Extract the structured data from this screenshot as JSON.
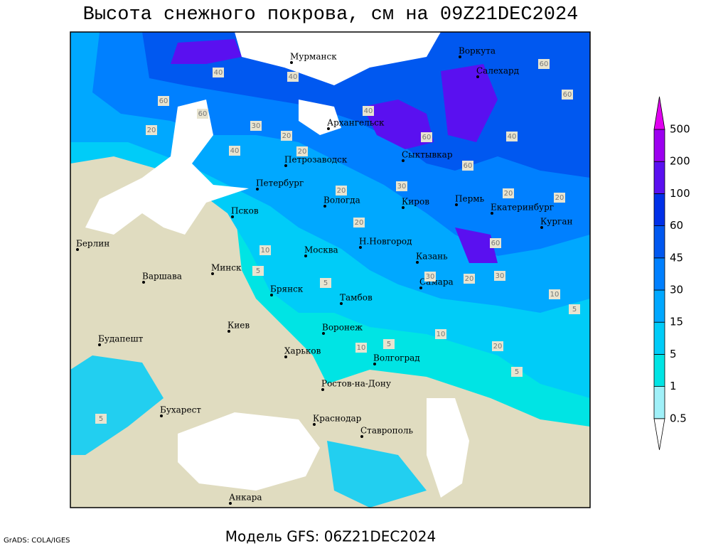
{
  "map": {
    "title": "Высота снежного покрова, см на 09Z21DEC2024",
    "footer": "Модель GFS: 06Z21DEC2024",
    "credit": "GrADS: COLA/IGES",
    "colorbar": {
      "levels": [
        0.5,
        1,
        5,
        15,
        30,
        45,
        60,
        100,
        200,
        500
      ],
      "colors": [
        "#ffffff",
        "#a0f0f8",
        "#00e4e4",
        "#00ccf8",
        "#00a8ff",
        "#0080ff",
        "#0058f0",
        "#0030e8",
        "#5a10f0",
        "#9c00f0",
        "#e000f0"
      ]
    },
    "cities": [
      "Мурманск",
      "Воркута",
      "Салехард",
      "Архангельск",
      "Сыктывкар",
      "Петрозаводск",
      "Петербург",
      "Вологда",
      "Киров",
      "Пермь",
      "Екатеринбург",
      "Курган",
      "Псков",
      "Н.Новгород",
      "Казань",
      "Москва",
      "Минск",
      "Берлин",
      "Варшава",
      "Самара",
      "Брянск",
      "Тамбов",
      "Воронеж",
      "Киев",
      "Харьков",
      "Будапешт",
      "Волгоград",
      "Ростов-на-Дону",
      "Бухарест",
      "Краснодар",
      "Ставрополь",
      "Анкара"
    ],
    "contour_labels": [
      40,
      40,
      40,
      40,
      40,
      60,
      60,
      60,
      60,
      60,
      60,
      60,
      30,
      30,
      30,
      30,
      20,
      20,
      20,
      20,
      20,
      20,
      20,
      20,
      20,
      10,
      10,
      10,
      10,
      5,
      5,
      5,
      5,
      5,
      5
    ]
  }
}
